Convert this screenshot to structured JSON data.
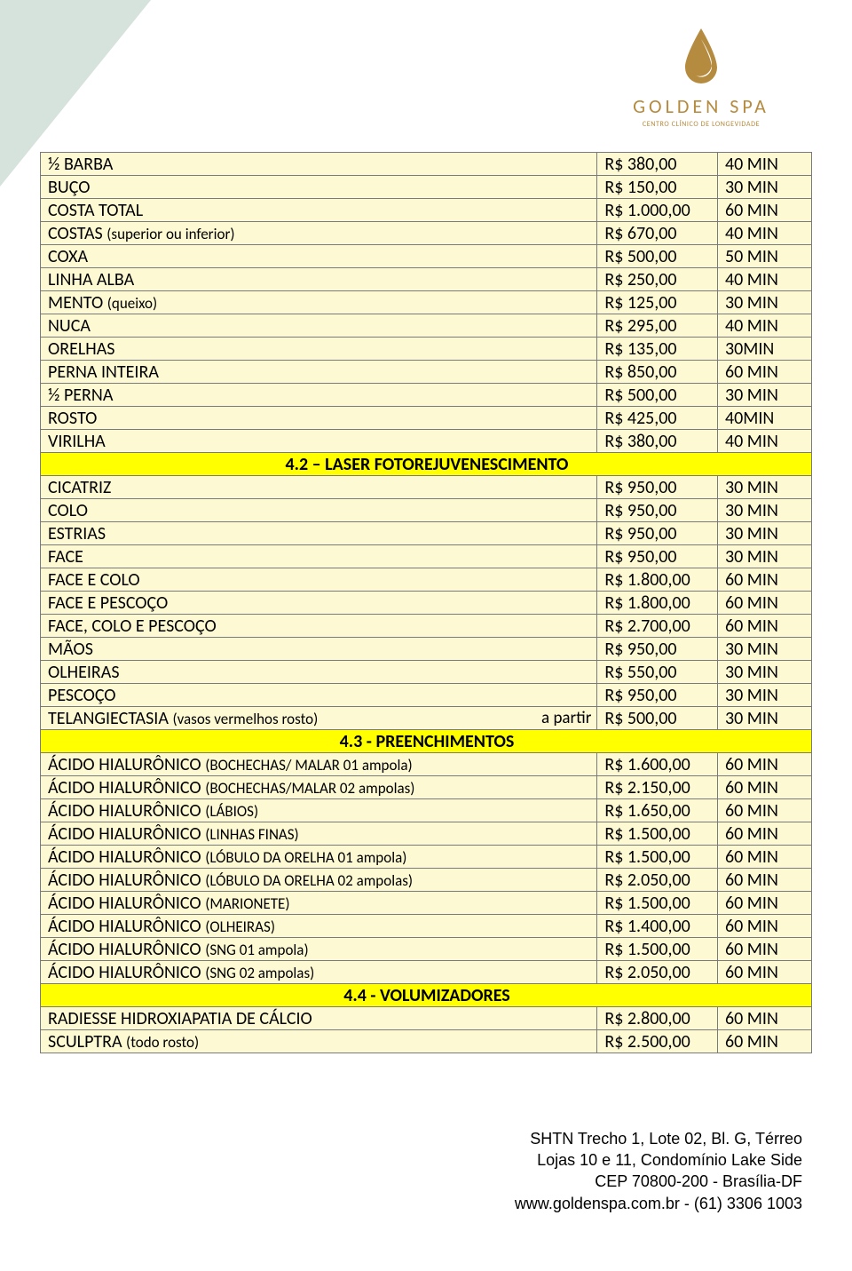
{
  "brand": {
    "name": "GOLDEN SPA",
    "tagline": "CENTRO CLÍNICO DE LONGEVIDADE",
    "drop_color": "#b58b3f"
  },
  "colors": {
    "row_bg": "#fdf9d3",
    "header_bg": "#ffff00",
    "border": "#7a7a7a",
    "corner": "#d6e3dc"
  },
  "sections": [
    {
      "header": null,
      "rows": [
        {
          "name": "½ BARBA",
          "price": "R$ 380,00",
          "time": "40 MIN"
        },
        {
          "name": "BUÇO",
          "price": "R$ 150,00",
          "time": "30 MIN"
        },
        {
          "name": "COSTA TOTAL",
          "price": "R$ 1.000,00",
          "time": "60 MIN"
        },
        {
          "name": "COSTAS",
          "sub": "(superior ou inferior)",
          "price": "R$ 670,00",
          "time": "40 MIN"
        },
        {
          "name": "COXA",
          "price": "R$ 500,00",
          "time": "50 MIN"
        },
        {
          "name": "LINHA ALBA",
          "price": "R$ 250,00",
          "time": "40 MIN"
        },
        {
          "name": "MENTO",
          "sub": "(queixo)",
          "price": "R$ 125,00",
          "time": "30 MIN"
        },
        {
          "name": "NUCA",
          "price": "R$ 295,00",
          "time": "40 MIN"
        },
        {
          "name": "ORELHAS",
          "price": "R$ 135,00",
          "time": "30MIN"
        },
        {
          "name": "PERNA INTEIRA",
          "price": "R$ 850,00",
          "time": "60 MIN"
        },
        {
          "name": "½ PERNA",
          "price": "R$ 500,00",
          "time": "30 MIN"
        },
        {
          "name": "ROSTO",
          "price": "R$ 425,00",
          "time": "40MIN"
        },
        {
          "name": "VIRILHA",
          "price": "R$ 380,00",
          "time": "40 MIN"
        }
      ]
    },
    {
      "header": "4.2 – LASER FOTOREJUVENESCIMENTO",
      "rows": [
        {
          "name": "CICATRIZ",
          "price": "R$ 950,00",
          "time": "30 MIN"
        },
        {
          "name": "COLO",
          "price": "R$ 950,00",
          "time": "30 MIN"
        },
        {
          "name": "ESTRIAS",
          "price": "R$ 950,00",
          "time": "30 MIN"
        },
        {
          "name": "FACE",
          "price": "R$ 950,00",
          "time": "30 MIN"
        },
        {
          "name": "FACE E COLO",
          "price": "R$ 1.800,00",
          "time": "60 MIN"
        },
        {
          "name": "FACE E PESCOÇO",
          "price": "R$ 1.800,00",
          "time": "60 MIN"
        },
        {
          "name": "FACE, COLO E PESCOÇO",
          "price": "R$ 2.700,00",
          "time": "60 MIN"
        },
        {
          "name": "MÃOS",
          "price": "R$ 950,00",
          "time": "30 MIN"
        },
        {
          "name": "OLHEIRAS",
          "price": "R$ 550,00",
          "time": "30 MIN"
        },
        {
          "name": "PESCOÇO",
          "price": "R$ 950,00",
          "time": "30 MIN"
        },
        {
          "name": "TELANGIECTASIA",
          "sub": "(vasos vermelhos rosto)",
          "right": "a partir",
          "price": "R$ 500,00",
          "time": "30 MIN"
        }
      ]
    },
    {
      "header": "4.3 - PREENCHIMENTOS",
      "rows": [
        {
          "name": "ÁCIDO HIALURÔNICO",
          "sub": "(BOCHECHAS/ MALAR 01 ampola)",
          "price": "R$ 1.600,00",
          "time": "60 MIN"
        },
        {
          "name": "ÁCIDO HIALURÔNICO",
          "sub": "(BOCHECHAS/MALAR 02 ampolas)",
          "price": "R$ 2.150,00",
          "time": "60 MIN"
        },
        {
          "name": "ÁCIDO HIALURÔNICO",
          "sub": "(LÁBIOS)",
          "price": "R$ 1.650,00",
          "time": "60 MIN"
        },
        {
          "name": "ÁCIDO HIALURÔNICO",
          "sub": "(LINHAS FINAS)",
          "price": "R$ 1.500,00",
          "time": "60 MIN"
        },
        {
          "name": "ÁCIDO HIALURÔNICO",
          "sub": "(LÓBULO DA ORELHA 01 ampola)",
          "price": "R$ 1.500,00",
          "time": "60 MIN"
        },
        {
          "name": "ÁCIDO HIALURÔNICO",
          "sub": "(LÓBULO DA ORELHA 02 ampolas)",
          "price": "R$ 2.050,00",
          "time": "60 MIN"
        },
        {
          "name": "ÁCIDO HIALURÔNICO",
          "sub": "(MARIONETE)",
          "price": "R$ 1.500,00",
          "time": "60 MIN"
        },
        {
          "name": "ÁCIDO HIALURÔNICO",
          "sub": "(OLHEIRAS)",
          "price": "R$ 1.400,00",
          "time": "60 MIN"
        },
        {
          "name": "ÁCIDO HIALURÔNICO",
          "sub": "(SNG  01 ampola)",
          "price": "R$ 1.500,00",
          "time": "60 MIN"
        },
        {
          "name": "ÁCIDO HIALURÔNICO",
          "sub": "(SNG 02 ampolas)",
          "price": "R$ 2.050,00",
          "time": "60 MIN"
        }
      ]
    },
    {
      "header": "4.4 - VOLUMIZADORES",
      "rows": [
        {
          "name": "RADIESSE   HIDROXIAPATIA DE CÁLCIO",
          "price": "R$ 2.800,00",
          "time": "60 MIN"
        },
        {
          "name": "SCULPTRA",
          "sub": "(todo rosto)",
          "price": "R$ 2.500,00",
          "time": "60 MIN"
        }
      ]
    }
  ],
  "footer": {
    "l1": "SHTN Trecho 1, Lote 02, Bl. G, Térreo",
    "l2": "Lojas 10 e 11, Condomínio Lake Side",
    "l3": "CEP 70800-200 - Brasília-DF",
    "l4": "www.goldenspa.com.br - (61) 3306 1003"
  }
}
